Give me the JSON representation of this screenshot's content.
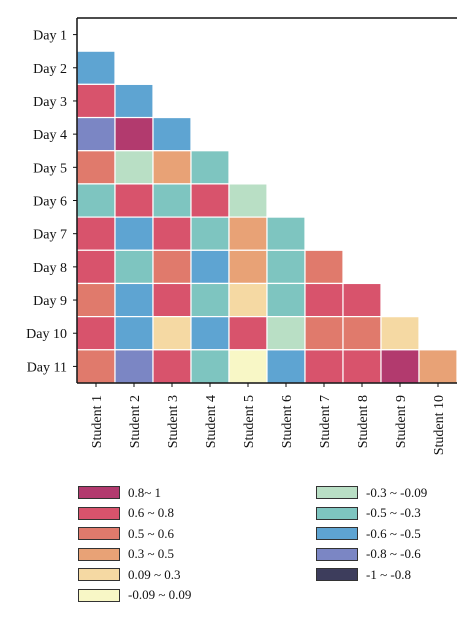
{
  "chart_data": {
    "type": "heatmap",
    "title": "",
    "xlabel": "",
    "ylabel": "",
    "rows": [
      "Day 1",
      "Day 2",
      "Day 3",
      "Day 4",
      "Day 5",
      "Day 6",
      "Day 7",
      "Day 8",
      "Day 9",
      "Day 10",
      "Day 11"
    ],
    "columns": [
      "Student 1",
      "Student 2",
      "Student 3",
      "Student 4",
      "Student 5",
      "Student 6",
      "Student 7",
      "Student 8",
      "Student 9",
      "Student 10"
    ],
    "legend_position": "bottom",
    "legend": [
      {
        "label": "0.8~ 1",
        "color": "#b23a6e"
      },
      {
        "label": "0.6 ~ 0.8",
        "color": "#d8536c"
      },
      {
        "label": "0.5 ~ 0.6",
        "color": "#e07a6c"
      },
      {
        "label": "0.3 ~ 0.5",
        "color": "#e8a276"
      },
      {
        "label": "0.09 ~ 0.3",
        "color": "#f5d9a3"
      },
      {
        "label": "-0.09 ~ 0.09",
        "color": "#f8f7c6"
      },
      {
        "label": "-0.3 ~ -0.09",
        "color": "#b9dfc5"
      },
      {
        "label": "-0.5 ~ -0.3",
        "color": "#7ec5c0"
      },
      {
        "label": "-0.6 ~ -0.5",
        "color": "#5ea4d2"
      },
      {
        "label": "-0.8 ~ -0.6",
        "color": "#7b86c4"
      },
      {
        "label": "-1 ~ -0.8",
        "color": "#3d3d5c"
      }
    ],
    "cells": [
      [],
      [
        "-0.6 ~ -0.5"
      ],
      [
        "0.6 ~ 0.8",
        "-0.6 ~ -0.5"
      ],
      [
        "-0.8 ~ -0.6",
        "0.8~ 1",
        "-0.6 ~ -0.5"
      ],
      [
        "0.5 ~ 0.6",
        "-0.3 ~ -0.09",
        "0.3 ~ 0.5",
        "-0.5 ~ -0.3"
      ],
      [
        "-0.5 ~ -0.3",
        "0.6 ~ 0.8",
        "-0.5 ~ -0.3",
        "0.6 ~ 0.8",
        "-0.3 ~ -0.09"
      ],
      [
        "0.6 ~ 0.8",
        "-0.6 ~ -0.5",
        "0.6 ~ 0.8",
        "-0.5 ~ -0.3",
        "0.3 ~ 0.5",
        "-0.5 ~ -0.3"
      ],
      [
        "0.6 ~ 0.8",
        "-0.5 ~ -0.3",
        "0.5 ~ 0.6",
        "-0.6 ~ -0.5",
        "0.3 ~ 0.5",
        "-0.5 ~ -0.3",
        "0.5 ~ 0.6"
      ],
      [
        "0.5 ~ 0.6",
        "-0.6 ~ -0.5",
        "0.6 ~ 0.8",
        "-0.5 ~ -0.3",
        "0.09 ~ 0.3",
        "-0.5 ~ -0.3",
        "0.6 ~ 0.8",
        "0.6 ~ 0.8"
      ],
      [
        "0.6 ~ 0.8",
        "-0.6 ~ -0.5",
        "0.09 ~ 0.3",
        "-0.6 ~ -0.5",
        "0.6 ~ 0.8",
        "-0.3 ~ -0.09",
        "0.5 ~ 0.6",
        "0.5 ~ 0.6",
        "0.09 ~ 0.3"
      ],
      [
        "0.5 ~ 0.6",
        "-0.8 ~ -0.6",
        "0.6 ~ 0.8",
        "-0.5 ~ -0.3",
        "-0.09 ~ 0.09",
        "-0.6 ~ -0.5",
        "0.6 ~ 0.8",
        "0.6 ~ 0.8",
        "0.8~ 1",
        "0.3 ~ 0.5"
      ]
    ]
  }
}
